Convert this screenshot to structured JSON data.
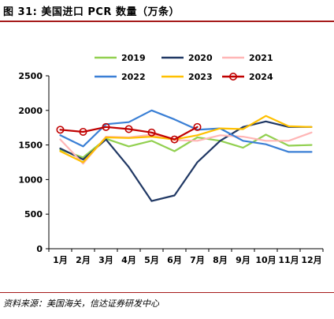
{
  "header": {
    "title": "图 31:  美国进口 PCR 数量（万条）"
  },
  "footer": {
    "source": "资料来源：美国海关，信达证券研发中心"
  },
  "chart_data": {
    "type": "line",
    "categories": [
      "1月",
      "2月",
      "3月",
      "4月",
      "5月",
      "6月",
      "7月",
      "8月",
      "9月",
      "10月",
      "11月",
      "12月"
    ],
    "ylim": [
      0,
      2500
    ],
    "yticks": [
      0,
      500,
      1000,
      1500,
      2000,
      2500
    ],
    "grid": false,
    "legend_position": "top",
    "series": [
      {
        "name": "2019",
        "color": "#92d050",
        "marker": false,
        "values": [
          1430,
          1320,
          1590,
          1480,
          1560,
          1410,
          1610,
          1560,
          1460,
          1650,
          1490,
          1500
        ]
      },
      {
        "name": "2020",
        "color": "#203864",
        "marker": false,
        "values": [
          1450,
          1290,
          1580,
          1180,
          690,
          770,
          1250,
          1560,
          1760,
          1840,
          1760,
          1760
        ]
      },
      {
        "name": "2021",
        "color": "#ffb6b6",
        "marker": false,
        "values": [
          1580,
          1230,
          1620,
          1610,
          1650,
          1570,
          1560,
          1640,
          1620,
          1560,
          1560,
          1680
        ]
      },
      {
        "name": "2022",
        "color": "#3a7fd5",
        "marker": false,
        "values": [
          1640,
          1480,
          1800,
          1830,
          2000,
          1870,
          1720,
          1740,
          1560,
          1510,
          1400,
          1400
        ]
      },
      {
        "name": "2023",
        "color": "#ffc000",
        "marker": false,
        "values": [
          1410,
          1250,
          1610,
          1600,
          1620,
          1580,
          1640,
          1740,
          1730,
          1920,
          1770,
          1760
        ]
      },
      {
        "name": "2024",
        "color": "#c00000",
        "marker": true,
        "values": [
          1720,
          1690,
          1760,
          1730,
          1680,
          1580,
          1760,
          null,
          null,
          null,
          null,
          null
        ]
      }
    ]
  }
}
